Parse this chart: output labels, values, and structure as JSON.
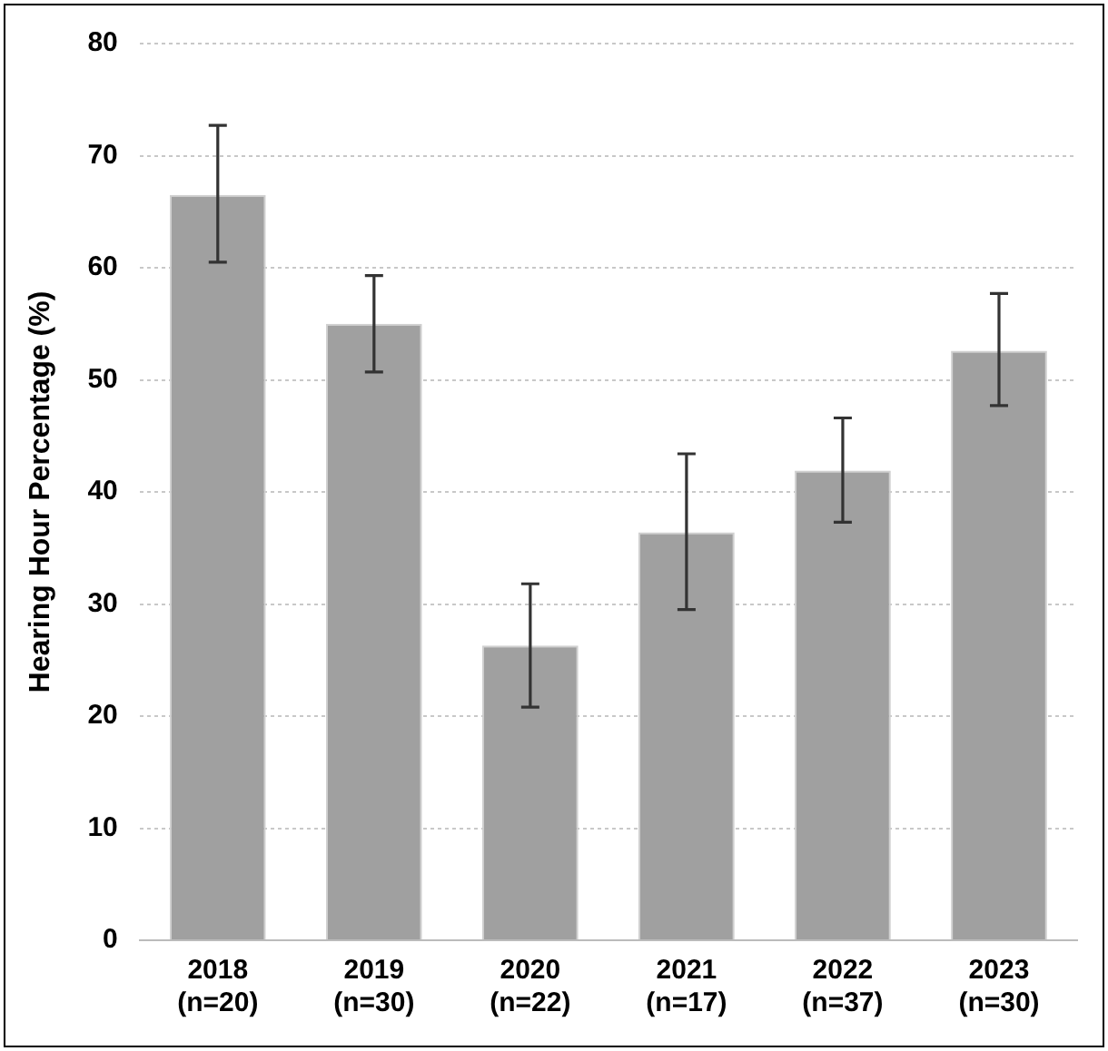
{
  "chart_data": {
    "type": "bar",
    "ylabel": "Hearing Hour Percentage (%)",
    "categories": [
      "2018\n(n=20)",
      "2019\n(n=30)",
      "2020\n(n=22)",
      "2021\n(n=17)",
      "2022\n(n=37)",
      "2023\n(n=30)"
    ],
    "values": [
      66.5,
      55.0,
      26.3,
      36.4,
      41.9,
      52.6
    ],
    "errors": [
      [
        60.5,
        72.7
      ],
      [
        50.7,
        59.3
      ],
      [
        20.8,
        31.8
      ],
      [
        29.5,
        43.4
      ],
      [
        37.3,
        46.6
      ],
      [
        47.7,
        57.7
      ]
    ],
    "color": "#a0a0a0",
    "ylim": [
      0,
      80
    ],
    "yticks": [
      0,
      10,
      20,
      30,
      40,
      50,
      60,
      70,
      80
    ],
    "grid": "y",
    "legend": false
  }
}
